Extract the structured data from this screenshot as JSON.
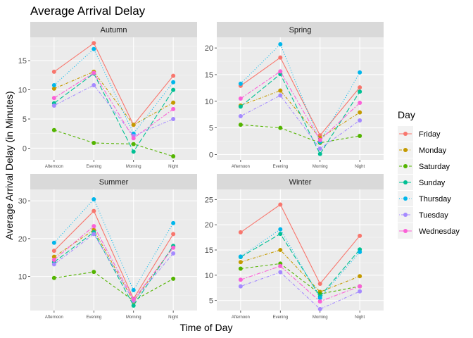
{
  "chart_data": {
    "type": "line",
    "title": "Average Arrival Delay",
    "xlabel": "Time of Day",
    "ylabel": "Average Arrival Delay (in Minutes)",
    "categories": [
      "Afternoon",
      "Evening",
      "Morning",
      "Night"
    ],
    "legend": {
      "title": "Day",
      "position": "right"
    },
    "series_style": [
      {
        "name": "Friday",
        "color": "#F8766D",
        "dash": "solid"
      },
      {
        "name": "Monday",
        "color": "#C49A00",
        "dash": "dotted-dashed"
      },
      {
        "name": "Saturday",
        "color": "#53B400",
        "dash": "dashed"
      },
      {
        "name": "Sunday",
        "color": "#00C094",
        "dash": "long-dashed"
      },
      {
        "name": "Thursday",
        "color": "#00B6EB",
        "dash": "dotted"
      },
      {
        "name": "Tuesday",
        "color": "#A58AFF",
        "dash": "dot-dash"
      },
      {
        "name": "Wednesday",
        "color": "#FB61D7",
        "dash": "two-dash"
      }
    ],
    "facets": [
      {
        "name": "Autumn",
        "ylim": [
          -2,
          19
        ],
        "yticks": [
          0,
          5,
          10,
          15
        ],
        "series": [
          {
            "name": "Friday",
            "values": [
              13.1,
              18.0,
              4.0,
              12.4
            ]
          },
          {
            "name": "Monday",
            "values": [
              10.2,
              13.1,
              4.0,
              7.8
            ]
          },
          {
            "name": "Saturday",
            "values": [
              3.1,
              0.9,
              0.7,
              -1.4
            ]
          },
          {
            "name": "Sunday",
            "values": [
              7.7,
              12.8,
              -0.6,
              10.0
            ]
          },
          {
            "name": "Thursday",
            "values": [
              10.8,
              17.0,
              2.5,
              11.3
            ]
          },
          {
            "name": "Tuesday",
            "values": [
              7.3,
              10.8,
              2.1,
              5.0
            ]
          },
          {
            "name": "Wednesday",
            "values": [
              8.6,
              12.9,
              1.7,
              6.7
            ]
          }
        ]
      },
      {
        "name": "Spring",
        "ylim": [
          -1,
          22
        ],
        "yticks": [
          0,
          5,
          10,
          15,
          20
        ],
        "series": [
          {
            "name": "Friday",
            "values": [
              12.9,
              18.2,
              3.6,
              12.6
            ]
          },
          {
            "name": "Monday",
            "values": [
              9.2,
              12.0,
              3.1,
              7.9
            ]
          },
          {
            "name": "Saturday",
            "values": [
              5.6,
              5.0,
              2.2,
              3.5
            ]
          },
          {
            "name": "Sunday",
            "values": [
              9.0,
              15.1,
              0.1,
              11.8
            ]
          },
          {
            "name": "Thursday",
            "values": [
              13.3,
              20.7,
              2.4,
              15.4
            ]
          },
          {
            "name": "Tuesday",
            "values": [
              7.2,
              11.1,
              1.1,
              6.4
            ]
          },
          {
            "name": "Wednesday",
            "values": [
              10.5,
              15.6,
              2.7,
              9.7
            ]
          }
        ]
      },
      {
        "name": "Summer",
        "ylim": [
          1,
          33
        ],
        "yticks": [
          10,
          20,
          30
        ],
        "series": [
          {
            "name": "Friday",
            "values": [
              16.8,
              27.3,
              4.1,
              21.2
            ]
          },
          {
            "name": "Monday",
            "values": [
              15.2,
              22.3,
              3.4,
              17.9
            ]
          },
          {
            "name": "Saturday",
            "values": [
              9.6,
              11.2,
              3.6,
              9.4
            ]
          },
          {
            "name": "Sunday",
            "values": [
              13.8,
              21.7,
              2.3,
              18.1
            ]
          },
          {
            "name": "Thursday",
            "values": [
              18.9,
              30.4,
              6.4,
              24.1
            ]
          },
          {
            "name": "Tuesday",
            "values": [
              13.2,
              21.2,
              3.6,
              16.1
            ]
          },
          {
            "name": "Wednesday",
            "values": [
              14.4,
              23.3,
              3.9,
              17.6
            ]
          }
        ]
      },
      {
        "name": "Winter",
        "ylim": [
          3,
          27
        ],
        "yticks": [
          5,
          10,
          15,
          20,
          25
        ],
        "series": [
          {
            "name": "Friday",
            "values": [
              18.5,
              24.0,
              8.3,
              17.8
            ]
          },
          {
            "name": "Monday",
            "values": [
              12.6,
              15.0,
              6.7,
              9.8
            ]
          },
          {
            "name": "Saturday",
            "values": [
              11.3,
              12.3,
              6.3,
              7.8
            ]
          },
          {
            "name": "Sunday",
            "values": [
              13.6,
              18.2,
              5.8,
              15.1
            ]
          },
          {
            "name": "Thursday",
            "values": [
              13.7,
              19.1,
              5.5,
              14.6
            ]
          },
          {
            "name": "Tuesday",
            "values": [
              7.8,
              10.6,
              3.3,
              6.8
            ]
          },
          {
            "name": "Wednesday",
            "values": [
              9.1,
              11.8,
              4.8,
              7.8
            ]
          }
        ]
      }
    ]
  }
}
